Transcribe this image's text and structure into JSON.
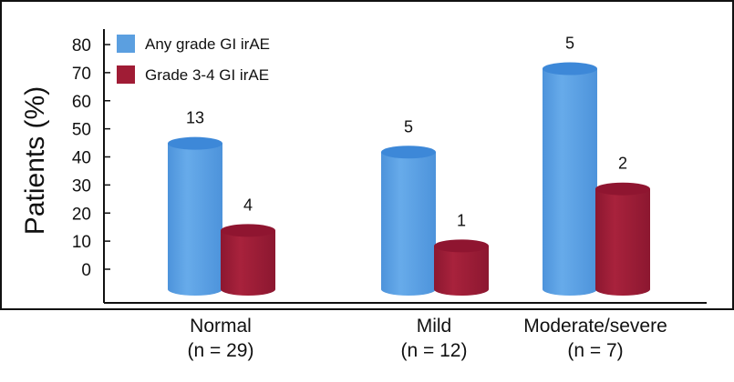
{
  "chart_data": {
    "type": "bar",
    "title": "",
    "ylabel": "Patients (%)",
    "xlabel": "",
    "ylim": [
      0,
      80
    ],
    "yticks": [
      0,
      10,
      20,
      30,
      40,
      50,
      60,
      70,
      80
    ],
    "categories": [
      [
        "Normal",
        "(n = 29)"
      ],
      [
        "Mild",
        "(n = 12)"
      ],
      [
        "Moderate/severe",
        "(n = 7)"
      ]
    ],
    "series": [
      {
        "name": "Any grade GI irAE",
        "color": "#5b9fe0",
        "values": [
          44.8,
          41.7,
          71.4
        ],
        "labels": [
          "13",
          "5",
          "5"
        ]
      },
      {
        "name": "Grade 3-4 GI irAE",
        "color": "#a01c35",
        "values": [
          13.8,
          8.3,
          28.6
        ],
        "labels": [
          "4",
          "1",
          "2"
        ]
      }
    ],
    "legend_position": "top-left",
    "grid": false
  }
}
